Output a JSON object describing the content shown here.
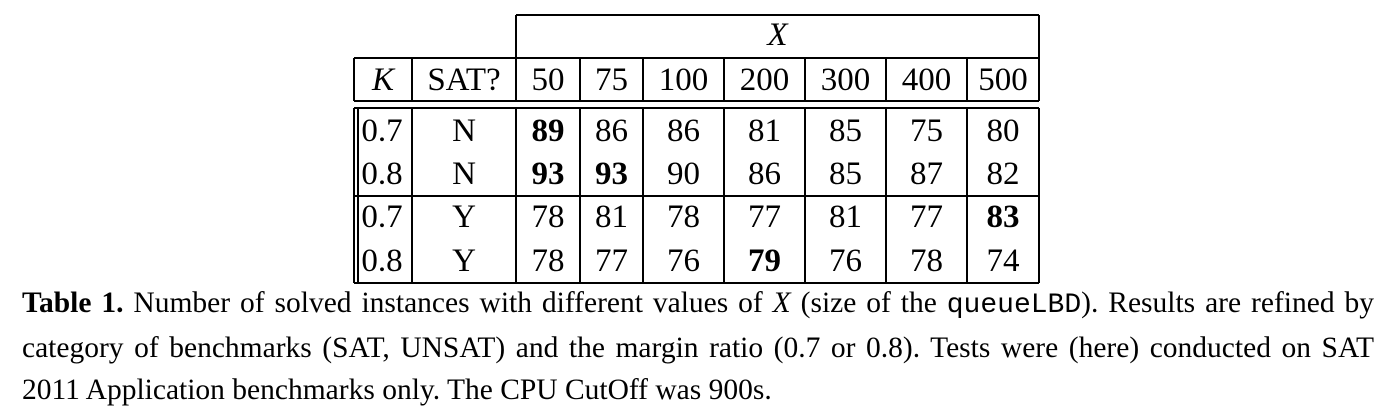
{
  "table": {
    "group_header": "X",
    "col_k": "K",
    "col_sat": "SAT?",
    "x_values": [
      "50",
      "75",
      "100",
      "200",
      "300",
      "400",
      "500"
    ],
    "rows": [
      {
        "k": "0.7",
        "sat": "N",
        "cells": [
          "89",
          "86",
          "86",
          "81",
          "85",
          "75",
          "80"
        ],
        "bold": [
          0
        ]
      },
      {
        "k": "0.8",
        "sat": "N",
        "cells": [
          "93",
          "93",
          "90",
          "86",
          "85",
          "87",
          "82"
        ],
        "bold": [
          0,
          1
        ]
      },
      {
        "k": "0.7",
        "sat": "Y",
        "cells": [
          "78",
          "81",
          "78",
          "77",
          "81",
          "77",
          "83"
        ],
        "bold": [
          6
        ]
      },
      {
        "k": "0.8",
        "sat": "Y",
        "cells": [
          "78",
          "77",
          "76",
          "79",
          "76",
          "78",
          "74"
        ],
        "bold": [
          3
        ]
      }
    ]
  },
  "caption": {
    "label": "Table 1.",
    "text_1": " Number of solved instances with different values of ",
    "var": "X",
    "text_2": " (size of the ",
    "code": "queueLBD",
    "text_3": "). Results are refined by category of benchmarks (SAT, UNSAT) and the margin ratio (0.7 or 0.8). Tests were (here) conducted on SAT 2011 Application benchmarks only. The CPU CutOff was 900s."
  }
}
